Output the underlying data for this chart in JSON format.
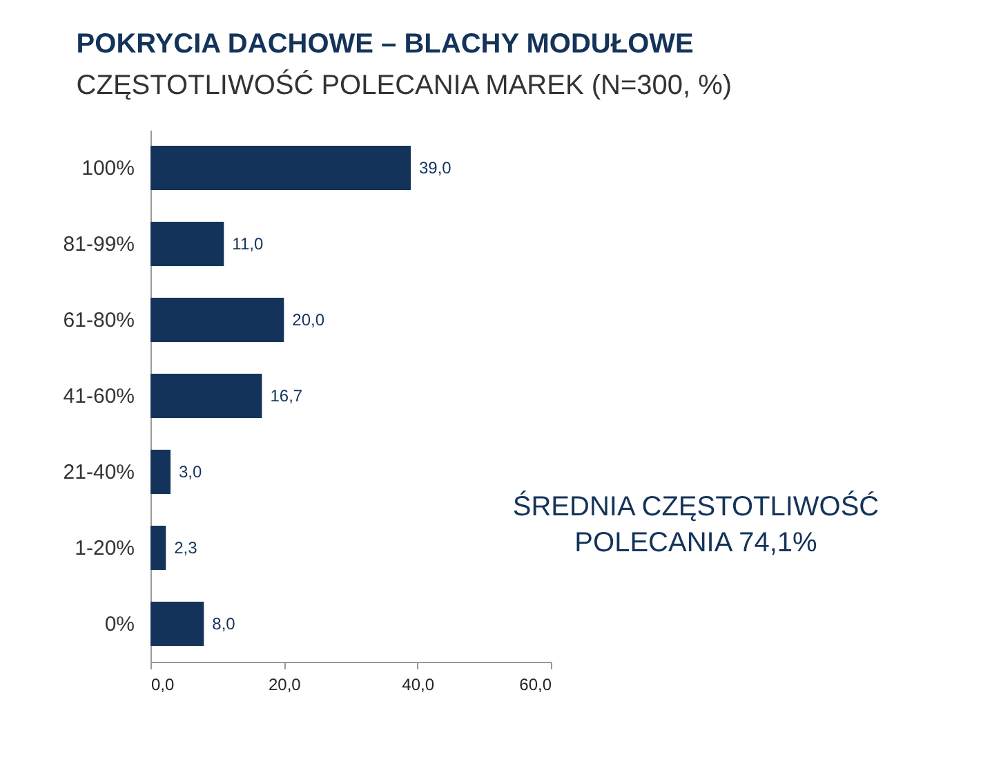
{
  "chart_data": {
    "type": "bar",
    "orientation": "horizontal",
    "title": "POKRYCIA DACHOWE – BLACHY MODUŁOWE",
    "subtitle": "CZĘSTOTLIWOŚĆ POLECANIA MAREK (N=300, %)",
    "categories": [
      "100%",
      "81-99%",
      "61-80%",
      "41-60%",
      "21-40%",
      "1-20%",
      "0%"
    ],
    "values": [
      39.0,
      11.0,
      20.0,
      16.7,
      3.0,
      2.3,
      8.0
    ],
    "value_labels": [
      "39,0",
      "11,0",
      "20,0",
      "16,7",
      "3,0",
      "2,3",
      "8,0"
    ],
    "color": "#14335a",
    "xlim": [
      0,
      60
    ],
    "xticks": [
      {
        "value": 0,
        "label": "0,0"
      },
      {
        "value": 20,
        "label": "20,0"
      },
      {
        "value": 40,
        "label": "40,0"
      },
      {
        "value": 60,
        "label": "60,0"
      }
    ],
    "grid": false,
    "legend": false,
    "annotations": [
      "ŚREDNIA CZĘSTOTLIWOŚĆ POLECANIA 74,1%"
    ]
  }
}
